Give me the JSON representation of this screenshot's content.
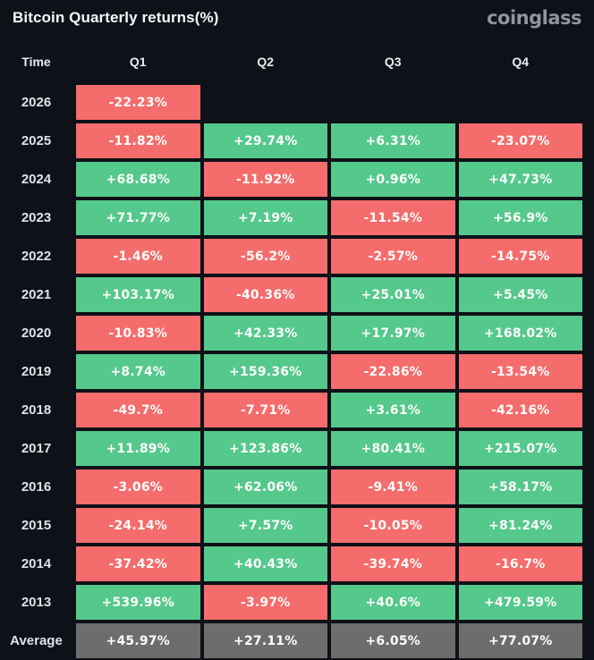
{
  "header": {
    "title": "Bitcoin Quarterly returns(%)",
    "brand": "coinglass"
  },
  "colors": {
    "background": "#0e1117",
    "positive": "#55c88c",
    "negative": "#f56c6c",
    "average": "#6d6d6d",
    "title_text": "#f5f7fa",
    "brand_text": "#8f959d",
    "cell_text": "#fdfefd"
  },
  "chart_data": {
    "type": "heatmap",
    "title": "Bitcoin Quarterly returns(%)",
    "value_unit": "%",
    "columns": [
      "Time",
      "Q1",
      "Q2",
      "Q3",
      "Q4"
    ],
    "legend_position": "none",
    "rows": [
      {
        "label": "2026",
        "is_average": false,
        "values": [
          -22.23,
          null,
          null,
          null
        ]
      },
      {
        "label": "2025",
        "is_average": false,
        "values": [
          -11.82,
          29.74,
          6.31,
          -23.07
        ]
      },
      {
        "label": "2024",
        "is_average": false,
        "values": [
          68.68,
          -11.92,
          0.96,
          47.73
        ]
      },
      {
        "label": "2023",
        "is_average": false,
        "values": [
          71.77,
          7.19,
          -11.54,
          56.9
        ]
      },
      {
        "label": "2022",
        "is_average": false,
        "values": [
          -1.46,
          -56.2,
          -2.57,
          -14.75
        ]
      },
      {
        "label": "2021",
        "is_average": false,
        "values": [
          103.17,
          -40.36,
          25.01,
          5.45
        ]
      },
      {
        "label": "2020",
        "is_average": false,
        "values": [
          -10.83,
          42.33,
          17.97,
          168.02
        ]
      },
      {
        "label": "2019",
        "is_average": false,
        "values": [
          8.74,
          159.36,
          -22.86,
          -13.54
        ]
      },
      {
        "label": "2018",
        "is_average": false,
        "values": [
          -49.7,
          -7.71,
          3.61,
          -42.16
        ]
      },
      {
        "label": "2017",
        "is_average": false,
        "values": [
          11.89,
          123.86,
          80.41,
          215.07
        ]
      },
      {
        "label": "2016",
        "is_average": false,
        "values": [
          -3.06,
          62.06,
          -9.41,
          58.17
        ]
      },
      {
        "label": "2015",
        "is_average": false,
        "values": [
          -24.14,
          7.57,
          -10.05,
          81.24
        ]
      },
      {
        "label": "2014",
        "is_average": false,
        "values": [
          -37.42,
          40.43,
          -39.74,
          -16.7
        ]
      },
      {
        "label": "2013",
        "is_average": false,
        "values": [
          539.96,
          -3.97,
          40.6,
          479.59
        ]
      },
      {
        "label": "Average",
        "is_average": true,
        "values": [
          45.97,
          27.11,
          6.05,
          77.07
        ]
      }
    ]
  }
}
